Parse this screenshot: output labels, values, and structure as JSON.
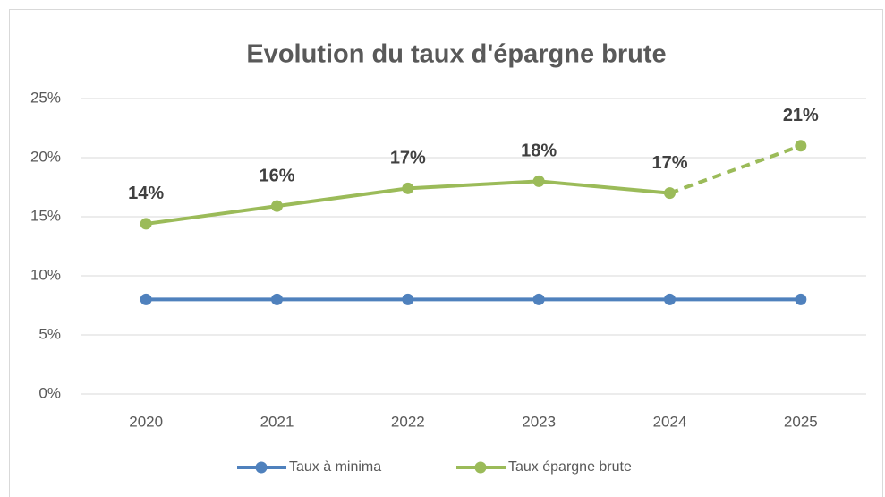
{
  "chart_data": {
    "type": "line",
    "title": "Evolution du taux d'épargne brute",
    "categories": [
      "2020",
      "2021",
      "2022",
      "2023",
      "2024",
      "2025"
    ],
    "series": [
      {
        "name": "Taux à minima",
        "color": "#4f81bd",
        "values": [
          8,
          8,
          8,
          8,
          8,
          8
        ]
      },
      {
        "name": "Taux épargne brute",
        "color": "#9bbb59",
        "values": [
          14.4,
          15.9,
          17.4,
          18,
          17,
          21
        ],
        "value_labels": [
          "14%",
          "16%",
          "17%",
          "18%",
          "17%",
          "21%"
        ],
        "dashed_segments": [
          4
        ]
      }
    ],
    "ylim": [
      0,
      25
    ],
    "yticks": [
      {
        "value": 0,
        "label": "0%"
      },
      {
        "value": 5,
        "label": "5%"
      },
      {
        "value": 10,
        "label": "10%"
      },
      {
        "value": 15,
        "label": "15%"
      },
      {
        "value": 20,
        "label": "20%"
      },
      {
        "value": 25,
        "label": "25%"
      }
    ],
    "grid": true,
    "legend": "bottom"
  }
}
